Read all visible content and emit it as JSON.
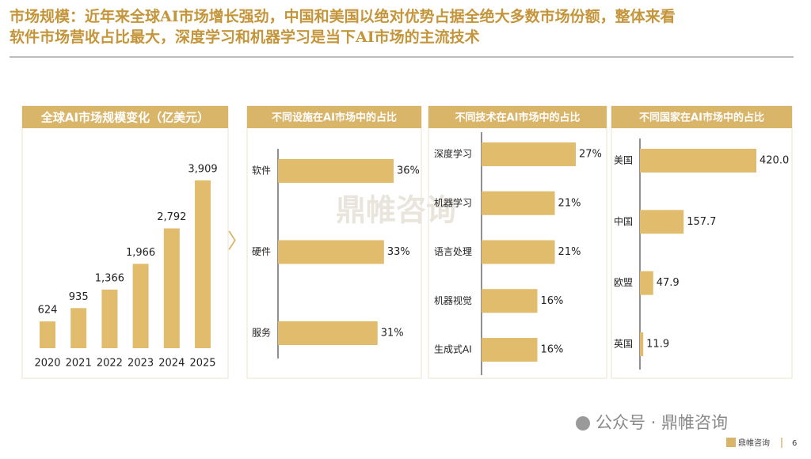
{
  "header": {
    "title_line1": "市场规模：近年来全球AI市场增长强劲，中国和美国以绝对优势占据全绝大多数市场份额，整体来看",
    "title_line2": "软件市场营收占比最大，深度学习和机器学习是当下AI市场的主流技术"
  },
  "watermark": "鼎帷咨询",
  "footer": {
    "account": "公众号 · 鼎帷咨询",
    "logo_text": "鼎帷咨询",
    "page": "6"
  },
  "chart_data": [
    {
      "type": "bar",
      "title": "全球AI市场规模变化（亿美元）",
      "categories": [
        "2020",
        "2021",
        "2022",
        "2023",
        "2024",
        "2025"
      ],
      "values": [
        624,
        935,
        1366,
        1966,
        2792,
        3909
      ],
      "value_labels": [
        "624",
        "935",
        "1,366",
        "1,966",
        "2,792",
        "3,909"
      ],
      "color": "#e0bc6c"
    },
    {
      "type": "hbar",
      "title": "不同设施在AI市场中的占比",
      "categories": [
        "软件",
        "硬件",
        "服务"
      ],
      "values": [
        36,
        33,
        31
      ],
      "value_labels": [
        "36%",
        "33%",
        "31%"
      ],
      "color": "#e0bc6c"
    },
    {
      "type": "hbar",
      "title": "不同技术在AI市场中的占比",
      "categories": [
        "深度学习",
        "机器学习",
        "语言处理",
        "机器视觉",
        "生成式AI"
      ],
      "values": [
        27,
        21,
        21,
        16,
        16
      ],
      "value_labels": [
        "27%",
        "21%",
        "21%",
        "16%",
        "16%"
      ],
      "color": "#e0bc6c"
    },
    {
      "type": "hbar",
      "title": "不同国家在AI市场中的占比",
      "categories": [
        "美国",
        "中国",
        "欧盟",
        "英国"
      ],
      "values": [
        420.0,
        157.7,
        47.9,
        11.9
      ],
      "value_labels": [
        "420.0",
        "157.7",
        "47.9",
        "11.9"
      ],
      "color": "#e0bc6c"
    }
  ]
}
